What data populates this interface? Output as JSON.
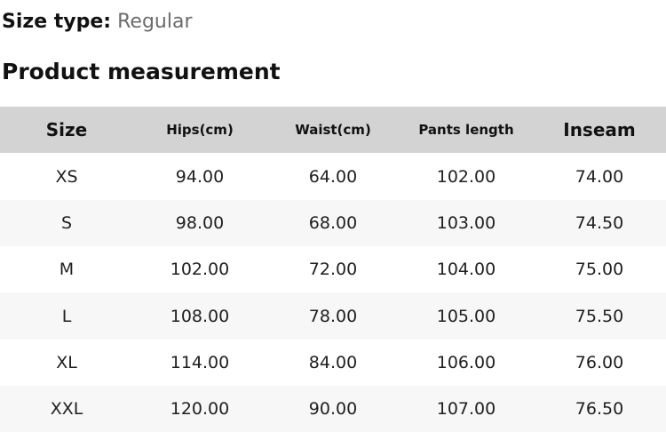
{
  "size_type": {
    "label": "Size type:",
    "value": "Regular"
  },
  "section_title": "Product measurement",
  "table": {
    "columns": [
      {
        "key": "size",
        "label": "Size"
      },
      {
        "key": "hips",
        "label": "Hips(cm)"
      },
      {
        "key": "waist",
        "label": "Waist(cm)"
      },
      {
        "key": "pants_length",
        "label": "Pants length"
      },
      {
        "key": "inseam",
        "label": "Inseam"
      }
    ],
    "rows": [
      [
        "XS",
        "94.00",
        "64.00",
        "102.00",
        "74.00"
      ],
      [
        "S",
        "98.00",
        "68.00",
        "103.00",
        "74.50"
      ],
      [
        "M",
        "102.00",
        "72.00",
        "104.00",
        "75.00"
      ],
      [
        "L",
        "108.00",
        "78.00",
        "105.00",
        "75.50"
      ],
      [
        "XL",
        "114.00",
        "84.00",
        "106.00",
        "76.00"
      ],
      [
        "XXL",
        "120.00",
        "90.00",
        "107.00",
        "76.50"
      ]
    ]
  },
  "colors": {
    "header_bg": "#d3d3d3",
    "alt_row_bg": "#f7f7f7",
    "muted_text": "#6b6b6b",
    "text": "#111111"
  }
}
